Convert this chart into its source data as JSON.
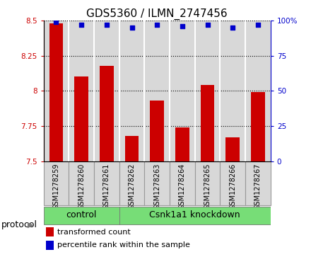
{
  "title": "GDS5360 / ILMN_2747456",
  "samples": [
    "GSM1278259",
    "GSM1278260",
    "GSM1278261",
    "GSM1278262",
    "GSM1278263",
    "GSM1278264",
    "GSM1278265",
    "GSM1278266",
    "GSM1278267"
  ],
  "transformed_count": [
    8.48,
    8.1,
    8.18,
    7.68,
    7.93,
    7.74,
    8.04,
    7.67,
    7.99
  ],
  "percentile_rank": [
    99,
    97,
    97,
    95,
    97,
    96,
    97,
    95,
    97
  ],
  "ylim_left": [
    7.5,
    8.5
  ],
  "ylim_right": [
    0,
    100
  ],
  "yticks_left": [
    7.5,
    7.75,
    8.0,
    8.25,
    8.5
  ],
  "ytick_labels_left": [
    "7.5",
    "7.75",
    "8",
    "8.25",
    "8.5"
  ],
  "yticks_right": [
    0,
    25,
    50,
    75,
    100
  ],
  "ytick_labels_right": [
    "0",
    "25",
    "50",
    "75",
    "100%"
  ],
  "ctrl_samples": [
    0,
    1,
    2
  ],
  "knock_samples": [
    3,
    4,
    5,
    6,
    7,
    8
  ],
  "group_labels": [
    "control",
    "Csnk1a1 knockdown"
  ],
  "group_color": "#77DD77",
  "bar_color": "#CC0000",
  "dot_color": "#0000CC",
  "bar_width": 0.55,
  "bg_color": "#D8D8D8",
  "sep_color": "#FFFFFF",
  "protocol_label": "protocol",
  "legend_items": [
    {
      "label": "transformed count",
      "color": "#CC0000"
    },
    {
      "label": "percentile rank within the sample",
      "color": "#0000CC"
    }
  ],
  "title_fontsize": 11,
  "tick_fontsize": 7.5,
  "sample_fontsize": 7,
  "group_label_fontsize": 9,
  "protocol_fontsize": 9,
  "legend_fontsize": 8
}
